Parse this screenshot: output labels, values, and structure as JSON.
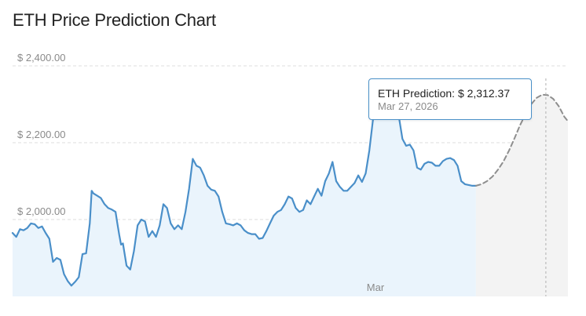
{
  "chart_data": {
    "type": "area",
    "title": "ETH Price Prediction Chart",
    "y_tick_labels": [
      "$ 2,400.00",
      "$ 2,200.00",
      "$ 2,000.00"
    ],
    "y_ticks": [
      2400,
      2200,
      2000
    ],
    "ylim": [
      1795,
      2460
    ],
    "x_tick_labels": [
      "Mar"
    ],
    "grid": true,
    "series": [
      {
        "style": "solid-area",
        "color": "#4a8fc9",
        "fill": "#eaf4fc",
        "points": [
          [
            0,
            1965
          ],
          [
            4,
            1955
          ],
          [
            8,
            1975
          ],
          [
            12,
            1972
          ],
          [
            16,
            1978
          ],
          [
            20,
            1990
          ],
          [
            24,
            1988
          ],
          [
            28,
            1978
          ],
          [
            32,
            1982
          ],
          [
            36,
            1965
          ],
          [
            40,
            1950
          ],
          [
            44,
            1890
          ],
          [
            48,
            1900
          ],
          [
            52,
            1895
          ],
          [
            56,
            1858
          ],
          [
            60,
            1840
          ],
          [
            64,
            1828
          ],
          [
            68,
            1838
          ],
          [
            72,
            1850
          ],
          [
            76,
            1910
          ],
          [
            80,
            1912
          ],
          [
            84,
            1990
          ],
          [
            86,
            2075
          ],
          [
            88,
            2068
          ],
          [
            92,
            2062
          ],
          [
            96,
            2056
          ],
          [
            100,
            2040
          ],
          [
            104,
            2030
          ],
          [
            108,
            2026
          ],
          [
            112,
            2020
          ],
          [
            114,
            1990
          ],
          [
            116,
            1960
          ],
          [
            118,
            1935
          ],
          [
            120,
            1938
          ],
          [
            124,
            1880
          ],
          [
            128,
            1870
          ],
          [
            132,
            1918
          ],
          [
            136,
            1985
          ],
          [
            140,
            2000
          ],
          [
            144,
            1995
          ],
          [
            148,
            1955
          ],
          [
            152,
            1970
          ],
          [
            156,
            1955
          ],
          [
            160,
            1985
          ],
          [
            164,
            2040
          ],
          [
            168,
            2030
          ],
          [
            172,
            1990
          ],
          [
            176,
            1975
          ],
          [
            180,
            1985
          ],
          [
            184,
            1975
          ],
          [
            188,
            2020
          ],
          [
            192,
            2080
          ],
          [
            196,
            2158
          ],
          [
            200,
            2140
          ],
          [
            204,
            2135
          ],
          [
            208,
            2115
          ],
          [
            212,
            2088
          ],
          [
            216,
            2078
          ],
          [
            220,
            2075
          ],
          [
            224,
            2060
          ],
          [
            228,
            2020
          ],
          [
            232,
            1990
          ],
          [
            236,
            1988
          ],
          [
            240,
            1985
          ],
          [
            244,
            1990
          ],
          [
            248,
            1985
          ],
          [
            252,
            1972
          ],
          [
            256,
            1965
          ],
          [
            260,
            1962
          ],
          [
            264,
            1962
          ],
          [
            268,
            1950
          ],
          [
            272,
            1952
          ],
          [
            276,
            1970
          ],
          [
            280,
            1990
          ],
          [
            284,
            2010
          ],
          [
            288,
            2020
          ],
          [
            292,
            2025
          ],
          [
            296,
            2040
          ],
          [
            300,
            2060
          ],
          [
            304,
            2055
          ],
          [
            308,
            2030
          ],
          [
            312,
            2020
          ],
          [
            316,
            2025
          ],
          [
            320,
            2050
          ],
          [
            324,
            2040
          ],
          [
            328,
            2060
          ],
          [
            332,
            2080
          ],
          [
            336,
            2062
          ],
          [
            340,
            2100
          ],
          [
            344,
            2120
          ],
          [
            348,
            2150
          ],
          [
            352,
            2100
          ],
          [
            356,
            2085
          ],
          [
            360,
            2075
          ],
          [
            364,
            2075
          ],
          [
            368,
            2085
          ],
          [
            372,
            2095
          ],
          [
            376,
            2115
          ],
          [
            380,
            2098
          ],
          [
            384,
            2120
          ],
          [
            388,
            2180
          ],
          [
            392,
            2260
          ],
          [
            396,
            2295
          ],
          [
            400,
            2310
          ],
          [
            404,
            2300
          ],
          [
            408,
            2295
          ],
          [
            412,
            2285
          ],
          [
            416,
            2280
          ],
          [
            420,
            2270
          ],
          [
            424,
            2210
          ],
          [
            428,
            2192
          ],
          [
            432,
            2195
          ],
          [
            436,
            2180
          ],
          [
            440,
            2135
          ],
          [
            444,
            2130
          ],
          [
            448,
            2145
          ],
          [
            452,
            2150
          ],
          [
            456,
            2148
          ],
          [
            460,
            2140
          ],
          [
            464,
            2140
          ],
          [
            468,
            2152
          ],
          [
            472,
            2158
          ],
          [
            476,
            2160
          ],
          [
            480,
            2155
          ],
          [
            484,
            2140
          ],
          [
            488,
            2100
          ],
          [
            492,
            2092
          ],
          [
            496,
            2090
          ],
          [
            500,
            2088
          ],
          [
            504,
            2088
          ]
        ]
      },
      {
        "style": "dashed-prediction",
        "color": "#8e8e8e",
        "fill": "#f3f3f3",
        "points": [
          [
            504,
            2088
          ],
          [
            510,
            2092
          ],
          [
            516,
            2100
          ],
          [
            522,
            2112
          ],
          [
            528,
            2130
          ],
          [
            534,
            2152
          ],
          [
            540,
            2180
          ],
          [
            546,
            2212
          ],
          [
            552,
            2246
          ],
          [
            558,
            2275
          ],
          [
            564,
            2300
          ],
          [
            570,
            2317
          ],
          [
            576,
            2325
          ],
          [
            582,
            2324
          ],
          [
            588,
            2314
          ],
          [
            594,
            2295
          ],
          [
            600,
            2268
          ],
          [
            604,
            2256
          ]
        ]
      }
    ],
    "tooltip": {
      "label": "ETH Prediction:",
      "value": "$ 2,312.37",
      "date": "Mar 27, 2026"
    }
  }
}
